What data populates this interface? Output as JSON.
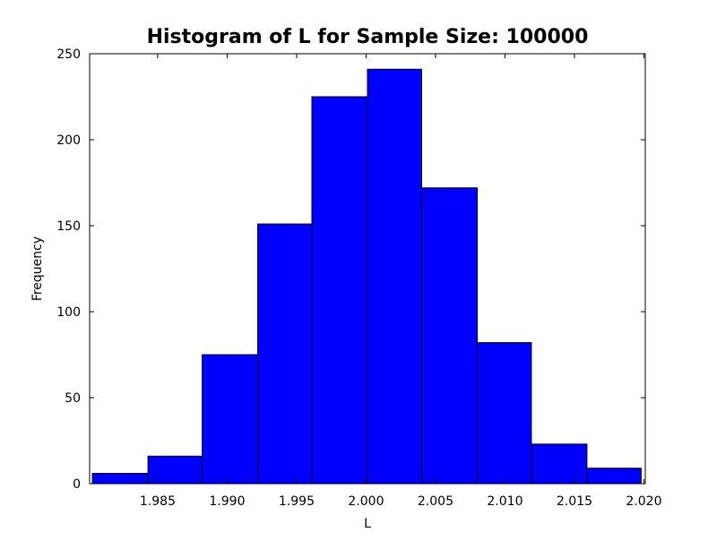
{
  "chart_data": {
    "type": "bar",
    "title": "Histogram of L for Sample Size: 100000",
    "xlabel": "L",
    "ylabel": "Frequency",
    "xlim": [
      1.9801,
      2.0201
    ],
    "ylim": [
      0,
      250
    ],
    "x_ticks": [
      1.985,
      1.99,
      1.995,
      2.0,
      2.005,
      2.01,
      2.015,
      2.02
    ],
    "x_tick_labels": [
      "1.985",
      "1.990",
      "1.995",
      "2.000",
      "2.005",
      "2.010",
      "2.015",
      "2.020"
    ],
    "y_ticks": [
      0,
      50,
      100,
      150,
      200,
      250
    ],
    "y_tick_labels": [
      "0",
      "50",
      "100",
      "150",
      "200",
      "250"
    ],
    "bin_edges": [
      1.9803,
      1.9843,
      1.9882,
      1.9922,
      1.9961,
      2.0001,
      2.004,
      2.008,
      2.0119,
      2.0159,
      2.0198
    ],
    "values": [
      6,
      16,
      75,
      151,
      225,
      241,
      172,
      82,
      23,
      9
    ],
    "bar_color": "#0000ff",
    "edge_color": "#000000",
    "grid": false,
    "legend": false
  }
}
